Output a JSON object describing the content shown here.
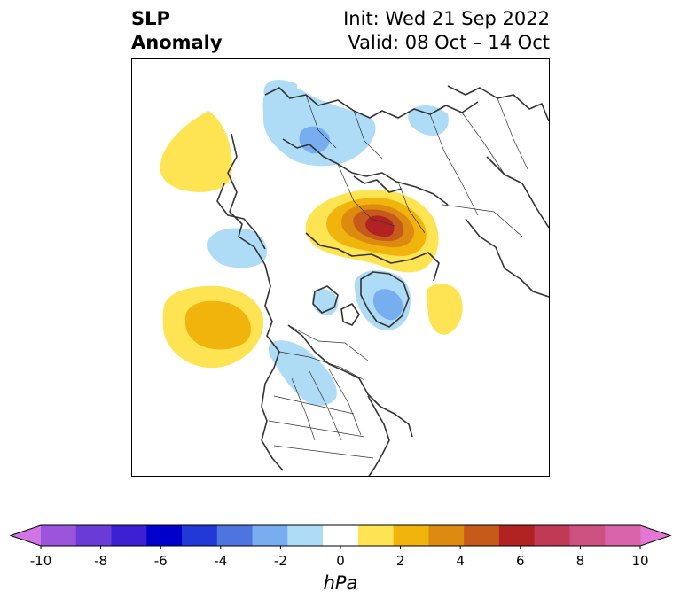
{
  "title": {
    "variable_line1": "SLP",
    "variable_line2": "Anomaly",
    "init": "Init: Wed 21 Sep 2022",
    "valid": "Valid: 08 Oct – 14 Oct"
  },
  "colorbar": {
    "unit": "hPa",
    "ticks": [
      "-10",
      "-8",
      "-6",
      "-4",
      "-2",
      "0",
      "2",
      "4",
      "6",
      "8",
      "10"
    ],
    "colors": [
      "#d274e6",
      "#9b55dc",
      "#6a3bd6",
      "#3d1fd4",
      "#0000cc",
      "#2239d8",
      "#4e74e0",
      "#76aef0",
      "#aedbf6",
      "#ffffff",
      "#fee352",
      "#f1b40d",
      "#dc8a10",
      "#c65a1a",
      "#b12323",
      "#c13a55",
      "#cc5080",
      "#d964ab",
      "#e676d4"
    ],
    "extend": "both"
  },
  "map": {
    "projection": "polar-stereographic",
    "region": "Northern Hemisphere / North America",
    "anomalies": [
      {
        "name": "positive-high-siberia",
        "sign": "positive",
        "max_hpa": 7
      },
      {
        "name": "positive-high-north-pacific",
        "sign": "positive",
        "max_hpa": 3
      },
      {
        "name": "positive-high-ne-pacific-left",
        "sign": "positive",
        "max_hpa": 1.5
      },
      {
        "name": "positive-high-greenland-east",
        "sign": "positive",
        "max_hpa": 1.5
      },
      {
        "name": "negative-low-europe",
        "sign": "negative",
        "max_hpa": -4
      },
      {
        "name": "negative-low-greenland",
        "sign": "negative",
        "max_hpa": -3
      },
      {
        "name": "negative-low-gulf-of-alaska",
        "sign": "negative",
        "max_hpa": -2
      },
      {
        "name": "negative-low-central-us",
        "sign": "negative",
        "max_hpa": -1.5
      }
    ]
  }
}
